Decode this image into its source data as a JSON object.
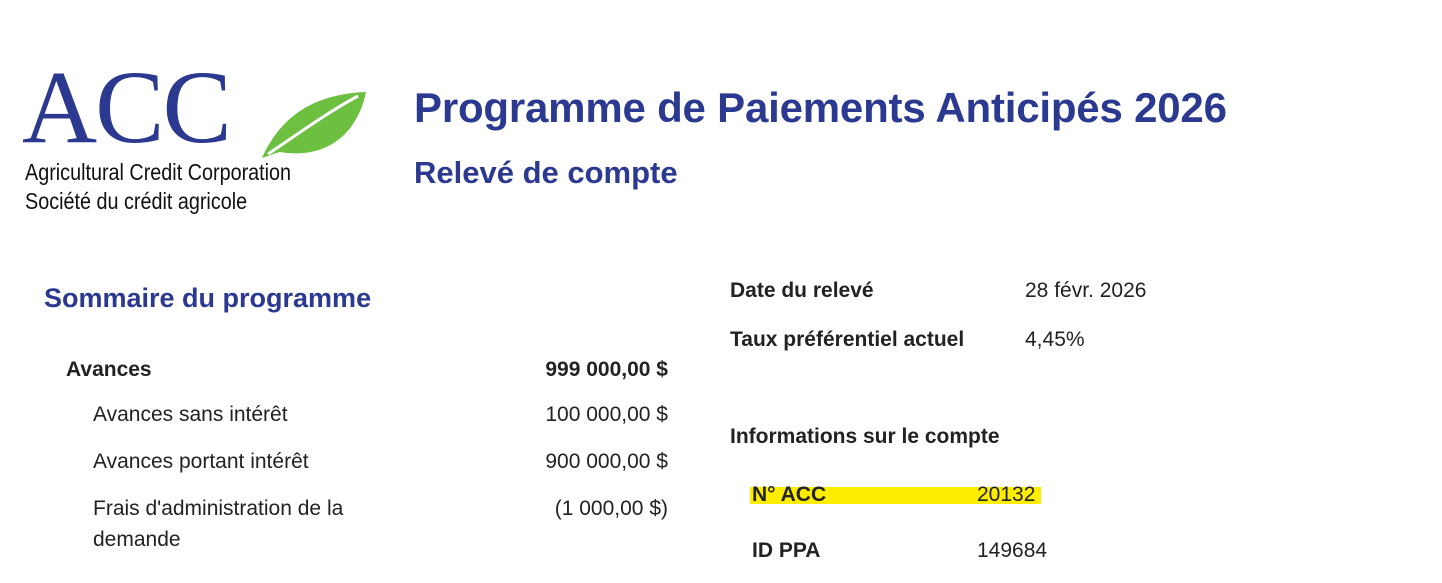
{
  "logo": {
    "wordmark": "ACC",
    "line_en": "Agricultural Credit Corporation",
    "line_fr": "Société du crédit agricole",
    "leaf_icon": "leaf-icon",
    "colors": {
      "wordmark": "#2b3990",
      "leaf": "#6cbf3f"
    }
  },
  "header": {
    "title": "Programme de Paiements Anticipés 2026",
    "subtitle": "Relevé de compte"
  },
  "summary": {
    "title": "Sommaire du programme",
    "rows": [
      {
        "label": "Avances",
        "value": "999 000,00 $"
      },
      {
        "label": "Avances sans intérêt",
        "value": "100 000,00 $"
      },
      {
        "label": "Avances portant intérêt",
        "value": "900 000,00 $"
      },
      {
        "label": "Frais d'administration de la demande",
        "value": "(1 000,00 $)"
      }
    ]
  },
  "statement": {
    "date_label": "Date du relevé",
    "date_value": "28 févr. 2026",
    "rate_label": "Taux préférentiel actuel",
    "rate_value": "4,45%"
  },
  "account": {
    "title": "Informations sur le compte",
    "acc_no_label": "N° ACC",
    "acc_no_value": "20132",
    "ppa_id_label": "ID PPA",
    "ppa_id_value": "149684",
    "highlight_color": "#ffed00"
  },
  "colors": {
    "accent": "#2b3990",
    "text": "#222222"
  }
}
